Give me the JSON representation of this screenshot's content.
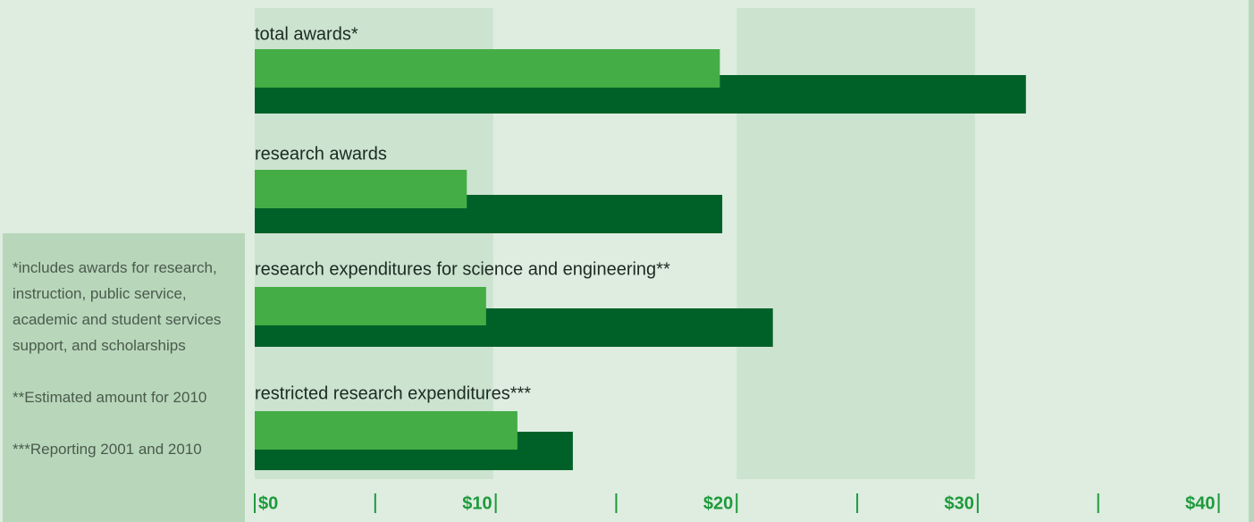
{
  "chart_data": {
    "type": "bar",
    "orientation": "horizontal",
    "categories": [
      "total awards*",
      "research awards",
      "research expenditures for science and engineering**",
      "restricted research expenditures***"
    ],
    "series": [
      {
        "color": "#45ad45",
        "values": [
          19.3,
          8.8,
          9.6,
          10.9
        ]
      },
      {
        "color": "#006128",
        "values": [
          32.0,
          19.4,
          21.5,
          13.2
        ]
      }
    ],
    "xlim": [
      0,
      40.5
    ],
    "xticks": [
      {
        "value": 0,
        "label": "$0"
      },
      {
        "value": 10,
        "label": "$10"
      },
      {
        "value": 20,
        "label": "$20"
      },
      {
        "value": 30,
        "label": "$30"
      },
      {
        "value": 40,
        "label": "$40"
      }
    ],
    "minor_xticks": [
      5,
      15,
      25,
      35
    ],
    "notes": [
      "*includes awards for research, instruction, public service, academic and student services support, and scholarships",
      "**Estimated amount for 2010",
      "***Reporting 2001 and 2010"
    ]
  }
}
